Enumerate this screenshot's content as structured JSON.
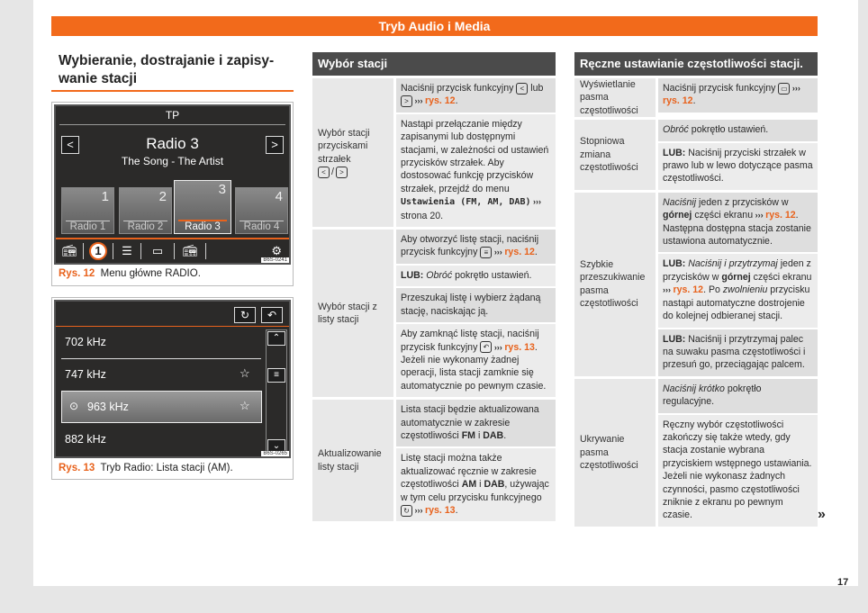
{
  "header": {
    "title": "Tryb Audio i Media"
  },
  "section": {
    "title": "Wybieranie, dostrajanie i zapisy-wanie stacji"
  },
  "fig12": {
    "screen_top": "TP",
    "station": "Radio 3",
    "song": "The Song - The Artist",
    "nav_prev": "<",
    "nav_next": ">",
    "presets": [
      {
        "num": "1",
        "label": "Radio 1"
      },
      {
        "num": "2",
        "label": "Radio 2"
      },
      {
        "num": "3",
        "label": "Radio 3"
      },
      {
        "num": "4",
        "label": "Radio 4"
      }
    ],
    "callout": "1",
    "code": "B6S-0241",
    "caption_ref": "Rys. 12",
    "caption": "Menu główne RADIO."
  },
  "fig13": {
    "items": [
      {
        "freq": "702 kHz",
        "fav": false
      },
      {
        "freq": "747 kHz",
        "fav": true
      },
      {
        "freq": "963 kHz",
        "fav": true,
        "playing": true
      },
      {
        "freq": "882 kHz",
        "fav": false
      }
    ],
    "code": "B6S-0265",
    "caption_ref": "Rys. 13",
    "caption": "Tryb Radio: Lista stacji (AM)."
  },
  "accent": "#f26a1b",
  "table_left": {
    "title": "Wybór stacji",
    "rows": [
      {
        "label": "Wybór stacji przyciskami strzałek",
        "label_icons": [
          "<",
          "/",
          ">"
        ],
        "cells": [
          [
            {
              "k": "n",
              "t": "Naciśnij przycisk funkcyjny "
            },
            {
              "k": "icon",
              "t": "<",
              "name": "arrow-left-icon"
            },
            {
              "k": "n",
              "t": " lub "
            },
            {
              "k": "icon",
              "t": ">",
              "name": "arrow-right-icon"
            },
            {
              "k": "a",
              "t": " ››› "
            },
            {
              "k": "r",
              "t": "rys. 12"
            },
            {
              "k": "n",
              "t": "."
            }
          ],
          [
            {
              "k": "n",
              "t": "Nastąpi przełączanie między zapisanymi lub dostępnymi stacjami, w zależności od ustawień przycisków strzałek. Aby dostosować funkcję przycisków strzałek, przejdź do menu "
            },
            {
              "k": "m",
              "t": "Ustawienia (FM, AM, DAB)"
            },
            {
              "k": "a",
              "t": " ››› "
            },
            {
              "k": "n",
              "t": "strona 20."
            }
          ]
        ]
      },
      {
        "label": "Wybór stacji z listy stacji",
        "cells": [
          [
            {
              "k": "n",
              "t": "Aby otworzyć listę stacji, naciśnij przycisk funkcyjny "
            },
            {
              "k": "icon",
              "t": "≡",
              "name": "list-icon"
            },
            {
              "k": "a",
              "t": " ››› "
            },
            {
              "k": "r",
              "t": "rys. 12"
            },
            {
              "k": "n",
              "t": "."
            }
          ],
          [
            {
              "k": "b",
              "t": "LUB:"
            },
            {
              "k": "n",
              "t": " "
            },
            {
              "k": "i",
              "t": "Obróć"
            },
            {
              "k": "n",
              "t": " pokrętło ustawień."
            }
          ],
          [
            {
              "k": "n",
              "t": "Przeszukaj listę i wybierz żądaną stację, naciskając ją."
            }
          ],
          [
            {
              "k": "n",
              "t": "Aby zamknąć listę stacji, naciśnij przycisk funkcyjny "
            },
            {
              "k": "icon",
              "t": "↶",
              "name": "back-icon"
            },
            {
              "k": "a",
              "t": " ››› "
            },
            {
              "k": "r",
              "t": "rys. 13"
            },
            {
              "k": "n",
              "t": ". Jeżeli nie wykonamy żadnej operacji, lista stacji zamknie się automatycznie po pewnym czasie."
            }
          ]
        ]
      },
      {
        "label": "Aktualizowanie listy stacji",
        "cells": [
          [
            {
              "k": "n",
              "t": "Lista stacji będzie aktualizowana automatycznie w zakresie częstotliwości "
            },
            {
              "k": "b",
              "t": "FM"
            },
            {
              "k": "n",
              "t": " i "
            },
            {
              "k": "b",
              "t": "DAB"
            },
            {
              "k": "n",
              "t": "."
            }
          ],
          [
            {
              "k": "n",
              "t": "Listę stacji można także aktualizować ręcznie w zakresie częstotliwości "
            },
            {
              "k": "b",
              "t": "AM"
            },
            {
              "k": "n",
              "t": " i "
            },
            {
              "k": "b",
              "t": "DAB"
            },
            {
              "k": "n",
              "t": ", używając w tym celu przycisku funkcyjnego "
            },
            {
              "k": "icon",
              "t": "↻",
              "name": "refresh-icon"
            },
            {
              "k": "a",
              "t": " ››› "
            },
            {
              "k": "r",
              "t": "rys. 13"
            },
            {
              "k": "n",
              "t": "."
            }
          ]
        ]
      }
    ]
  },
  "table_right": {
    "title": "Ręczne ustawianie częstotliwości stacji.",
    "rows": [
      {
        "label": "Wyświetlanie pasma częstotliwości",
        "cells": [
          [
            {
              "k": "n",
              "t": "Naciśnij przycisk funkcyjny "
            },
            {
              "k": "icon",
              "t": "▭",
              "name": "frequency-band-icon"
            },
            {
              "k": "a",
              "t": " ››› "
            },
            {
              "k": "r",
              "t": "rys. 12"
            },
            {
              "k": "n",
              "t": "."
            }
          ]
        ]
      },
      {
        "label": "Stopniowa zmiana częstotliwości",
        "cells": [
          [
            {
              "k": "i",
              "t": "Obróć"
            },
            {
              "k": "n",
              "t": " pokrętło ustawień."
            }
          ],
          [
            {
              "k": "b",
              "t": "LUB:"
            },
            {
              "k": "n",
              "t": " Naciśnij przyciski strzałek w prawo lub w lewo dotyczące pasma częstotliwości."
            }
          ]
        ]
      },
      {
        "label": "Szybkie przeszukiwanie pasma częstotliwości",
        "cells": [
          [
            {
              "k": "i",
              "t": "Naciśnij"
            },
            {
              "k": "n",
              "t": " jeden z przycisków w "
            },
            {
              "k": "b",
              "t": "górnej"
            },
            {
              "k": "n",
              "t": " części ekranu"
            },
            {
              "k": "a",
              "t": " ››› "
            },
            {
              "k": "r",
              "t": "rys. 12"
            },
            {
              "k": "n",
              "t": ". Następna dostępna stacja zostanie ustawiona automatycznie."
            }
          ],
          [
            {
              "k": "b",
              "t": "LUB:"
            },
            {
              "k": "n",
              "t": " "
            },
            {
              "k": "i",
              "t": "Naciśnij i przytrzymaj"
            },
            {
              "k": "n",
              "t": " jeden z przycisków w "
            },
            {
              "k": "b",
              "t": "górnej"
            },
            {
              "k": "n",
              "t": " części ekranu"
            },
            {
              "k": "a",
              "t": " ››› "
            },
            {
              "k": "r",
              "t": "rys. 12"
            },
            {
              "k": "n",
              "t": ". Po "
            },
            {
              "k": "i",
              "t": "zwolnieniu"
            },
            {
              "k": "n",
              "t": " przycisku nastąpi automatyczne dostrojenie do kolejnej odbieranej stacji."
            }
          ],
          [
            {
              "k": "b",
              "t": "LUB:"
            },
            {
              "k": "n",
              "t": " Naciśnij i przytrzymaj palec na suwaku pasma częstotliwości i przesuń go, przeciągając palcem."
            }
          ]
        ]
      },
      {
        "label": "Ukrywanie pasma częstotliwości",
        "cells": [
          [
            {
              "k": "i",
              "t": "Naciśnij krótko"
            },
            {
              "k": "n",
              "t": " pokrętło regulacyjne."
            }
          ],
          [
            {
              "k": "n",
              "t": "Ręczny wybór częstotliwości zakończy się także wtedy, gdy stacja zostanie wybrana przyciskiem wstępnego ustawiania. Jeżeli nie wykonasz żadnych czynności, pasmo częstotliwości zniknie z ekranu po pewnym czasie."
            }
          ]
        ]
      }
    ]
  },
  "continue_marker": "»",
  "page_number": "17"
}
